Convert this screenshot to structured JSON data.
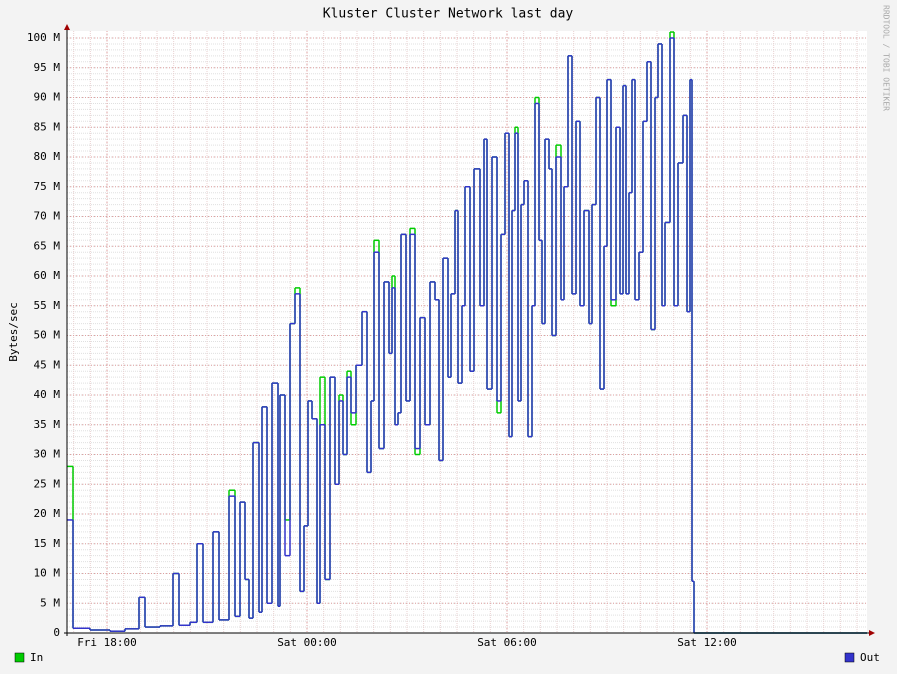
{
  "chart_data": {
    "type": "step",
    "title": "Kluster Cluster Network last day",
    "y_label": "Bytes/sec",
    "watermark": "RRDTOOL / TOBI OETIKER",
    "x": [
      16.8,
      16.98,
      17.49,
      18.09,
      18.54,
      18.96,
      19.14,
      19.59,
      19.98,
      20.16,
      20.49,
      20.7,
      20.88,
      21.18,
      21.36,
      21.66,
      21.84,
      21.99,
      22.14,
      22.26,
      22.38,
      22.56,
      22.65,
      22.8,
      22.95,
      23.13,
      23.19,
      23.34,
      23.49,
      23.64,
      23.79,
      23.91,
      24.03,
      24.15,
      24.3,
      24.39,
      24.54,
      24.69,
      24.84,
      24.96,
      25.08,
      25.2,
      25.32,
      25.47,
      25.65,
      25.8,
      25.92,
      26.01,
      26.16,
      26.31,
      26.46,
      26.55,
      26.64,
      26.73,
      26.82,
      26.97,
      27.09,
      27.24,
      27.39,
      27.54,
      27.69,
      27.84,
      27.96,
      28.08,
      28.23,
      28.32,
      28.44,
      28.53,
      28.65,
      28.74,
      28.89,
      29.01,
      29.19,
      29.31,
      29.4,
      29.55,
      29.7,
      29.82,
      29.94,
      30.06,
      30.15,
      30.24,
      30.33,
      30.42,
      30.51,
      30.63,
      30.75,
      30.84,
      30.96,
      31.05,
      31.14,
      31.26,
      31.35,
      31.47,
      31.62,
      31.71,
      31.83,
      31.95,
      32.07,
      32.19,
      32.31,
      32.46,
      32.55,
      32.67,
      32.79,
      32.91,
      33.0,
      33.12,
      33.27,
      33.39,
      33.48,
      33.57,
      33.66,
      33.75,
      33.84,
      33.96,
      34.08,
      34.2,
      34.32,
      34.44,
      34.53,
      34.65,
      34.74,
      34.89,
      35.01,
      35.13,
      35.28,
      35.4,
      35.49,
      35.55,
      35.61
    ],
    "series": [
      {
        "name": "In",
        "color": "#00cc00",
        "values": [
          28000000.0,
          800000.0,
          500000.0,
          300000.0,
          700000.0,
          6000000.0,
          1000000.0,
          1200000.0,
          10000000.0,
          1300000.0,
          1800000.0,
          15000000.0,
          1800000.0,
          17000000.0,
          2200000.0,
          24000000.0,
          2800000.0,
          22000000.0,
          9000000.0,
          2500000.0,
          32000000.0,
          3500000.0,
          38000000.0,
          5000000.0,
          42000000.0,
          4500000.0,
          40000000.0,
          19000000.0,
          52000000.0,
          58000000.0,
          7000000.0,
          18000000.0,
          39000000.0,
          36000000.0,
          5000000.0,
          43000000.0,
          9000000.0,
          43000000.0,
          25000000.0,
          40000000.0,
          30000000.0,
          44000000.0,
          35000000.0,
          45000000.0,
          54000000.0,
          27000000.0,
          39000000.0,
          66000000.0,
          31000000.0,
          59000000.0,
          47000000.0,
          60000000.0,
          35000000.0,
          37000000.0,
          67000000.0,
          39000000.0,
          68000000.0,
          30000000.0,
          53000000.0,
          35000000.0,
          59000000.0,
          56000000.0,
          29000000.0,
          63000000.0,
          43000000.0,
          57000000.0,
          71000000.0,
          42000000.0,
          55000000.0,
          75000000.0,
          44000000.0,
          78000000.0,
          55000000.0,
          83000000.0,
          41000000.0,
          80000000.0,
          37000000.0,
          67000000.0,
          84000000.0,
          33000000.0,
          71000000.0,
          85000000.0,
          39000000.0,
          72000000.0,
          76000000.0,
          33000000.0,
          55000000.0,
          90000000.0,
          66000000.0,
          52000000.0,
          83000000.0,
          78000000.0,
          50000000.0,
          82000000.0,
          56000000.0,
          75000000.0,
          97000000.0,
          57000000.0,
          86000000.0,
          55000000.0,
          71000000.0,
          52000000.0,
          72000000.0,
          90000000.0,
          41000000.0,
          65000000.0,
          93000000.0,
          55000000.0,
          85000000.0,
          57000000.0,
          92000000.0,
          57000000.0,
          74000000.0,
          93000000.0,
          56000000.0,
          64000000.0,
          86000000.0,
          96000000.0,
          51000000.0,
          90000000.0,
          99000000.0,
          55000000.0,
          69000000.0,
          101000000.0,
          55000000.0,
          79000000.0,
          87000000.0,
          54000000.0,
          93000000.0,
          8700000.0,
          0
        ]
      },
      {
        "name": "Out",
        "color": "#3333cc",
        "values": [
          19000000.0,
          800000.0,
          500000.0,
          300000.0,
          700000.0,
          6000000.0,
          1000000.0,
          1200000.0,
          10000000.0,
          1300000.0,
          1800000.0,
          15000000.0,
          1800000.0,
          17000000.0,
          2200000.0,
          23000000.0,
          2800000.0,
          22000000.0,
          9000000.0,
          2500000.0,
          32000000.0,
          3500000.0,
          38000000.0,
          5000000.0,
          42000000.0,
          4500000.0,
          40000000.0,
          13000000.0,
          52000000.0,
          57000000.0,
          7000000.0,
          18000000.0,
          39000000.0,
          36000000.0,
          5000000.0,
          35000000.0,
          9000000.0,
          43000000.0,
          25000000.0,
          39000000.0,
          30000000.0,
          43000000.0,
          37000000.0,
          45000000.0,
          54000000.0,
          27000000.0,
          39000000.0,
          64000000.0,
          31000000.0,
          59000000.0,
          47000000.0,
          58000000.0,
          35000000.0,
          37000000.0,
          67000000.0,
          39000000.0,
          67000000.0,
          31000000.0,
          53000000.0,
          35000000.0,
          59000000.0,
          56000000.0,
          29000000.0,
          63000000.0,
          43000000.0,
          57000000.0,
          71000000.0,
          42000000.0,
          55000000.0,
          75000000.0,
          44000000.0,
          78000000.0,
          55000000.0,
          83000000.0,
          41000000.0,
          80000000.0,
          39000000.0,
          67000000.0,
          84000000.0,
          33000000.0,
          71000000.0,
          84000000.0,
          39000000.0,
          72000000.0,
          76000000.0,
          33000000.0,
          55000000.0,
          89000000.0,
          66000000.0,
          52000000.0,
          83000000.0,
          78000000.0,
          50000000.0,
          80000000.0,
          56000000.0,
          75000000.0,
          97000000.0,
          57000000.0,
          86000000.0,
          55000000.0,
          71000000.0,
          52000000.0,
          72000000.0,
          90000000.0,
          41000000.0,
          65000000.0,
          93000000.0,
          56000000.0,
          85000000.0,
          57000000.0,
          92000000.0,
          57000000.0,
          74000000.0,
          93000000.0,
          56000000.0,
          64000000.0,
          86000000.0,
          96000000.0,
          51000000.0,
          90000000.0,
          99000000.0,
          55000000.0,
          69000000.0,
          100000000.0,
          55000000.0,
          79000000.0,
          87000000.0,
          54000000.0,
          93000000.0,
          8700000.0,
          0
        ]
      }
    ],
    "xlim": [
      16.8,
      40.8
    ],
    "xticks": [
      {
        "value": 18,
        "label": "Fri 18:00"
      },
      {
        "value": 24,
        "label": "Sat 00:00"
      },
      {
        "value": 30,
        "label": "Sat 06:00"
      },
      {
        "value": 36,
        "label": "Sat 12:00"
      }
    ],
    "ylim": [
      0,
      100000000.0
    ],
    "yticks": [
      0,
      {
        "value": 5000000.0,
        "label": "5 M"
      },
      {
        "value": 10000000.0,
        "label": "10 M"
      },
      {
        "value": 15000000.0,
        "label": "15 M"
      },
      {
        "value": 20000000.0,
        "label": "20 M"
      },
      {
        "value": 25000000.0,
        "label": "25 M"
      },
      {
        "value": 30000000.0,
        "label": "30 M"
      },
      {
        "value": 35000000.0,
        "label": "35 M"
      },
      {
        "value": 40000000.0,
        "label": "40 M"
      },
      {
        "value": 45000000.0,
        "label": "45 M"
      },
      {
        "value": 50000000.0,
        "label": "50 M"
      },
      {
        "value": 55000000.0,
        "label": "55 M"
      },
      {
        "value": 60000000.0,
        "label": "60 M"
      },
      {
        "value": 65000000.0,
        "label": "65 M"
      },
      {
        "value": 70000000.0,
        "label": "70 M"
      },
      {
        "value": 75000000.0,
        "label": "75 M"
      },
      {
        "value": 80000000.0,
        "label": "80 M"
      },
      {
        "value": 85000000.0,
        "label": "85 M"
      },
      {
        "value": 90000000.0,
        "label": "90 M"
      },
      {
        "value": 95000000.0,
        "label": "95 M"
      },
      {
        "value": 100000000.0,
        "label": "100 M"
      }
    ],
    "grid": true
  }
}
